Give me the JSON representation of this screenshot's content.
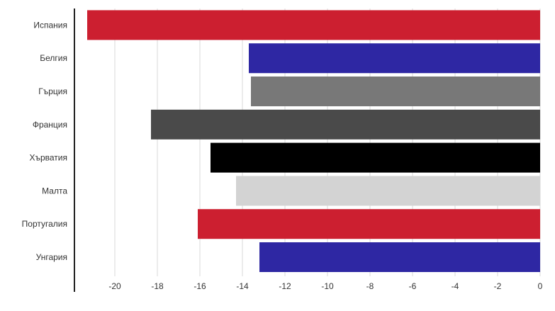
{
  "chart_data": {
    "type": "bar",
    "orientation": "horizontal",
    "title": "",
    "xlabel": "",
    "ylabel": "",
    "categories": [
      "Испания",
      "Белгия",
      "Гърция",
      "Франция",
      "Хърватия",
      "Малта",
      "Португалия",
      "Унгария"
    ],
    "values": [
      -21.3,
      -13.7,
      -13.6,
      -18.3,
      -15.5,
      -14.3,
      -16.1,
      -13.2
    ],
    "colors": [
      "#cc1f30",
      "#2e27a3",
      "#787878",
      "#4a4a4a",
      "#000000",
      "#d3d3d3",
      "#cc1f30",
      "#2e27a3"
    ],
    "xlim": [
      -21.5,
      0
    ],
    "ticks": [
      -20,
      -18,
      -16,
      -14,
      -12,
      -10,
      -8,
      -6,
      -4,
      -2,
      0
    ],
    "tick_labels": [
      "-20",
      "-18",
      "-16",
      "-14",
      "-12",
      "-10",
      "-8",
      "-6",
      "-4",
      "-2",
      "0"
    ],
    "grid": true,
    "legend": "none"
  }
}
